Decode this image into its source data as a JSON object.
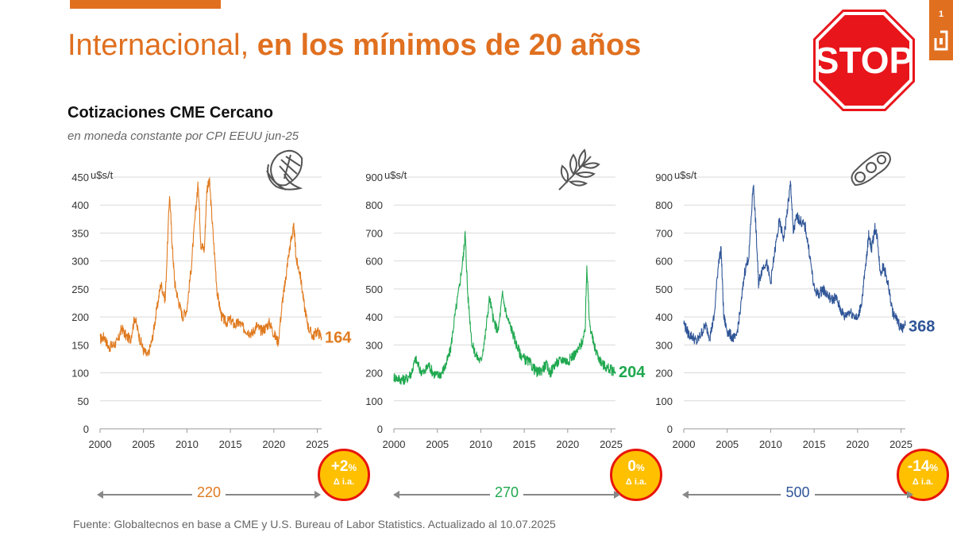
{
  "header": {
    "title_plain": "Internacional,",
    "title_bold": "en los mínimos de 20 años",
    "page_number": "1",
    "stop_sign_text": "STOP"
  },
  "subtitle": "Cotizaciones CME Cercano",
  "subsubtitle": "en moneda constante por CPI EEUU jun-25",
  "source": "Fuente: Globaltecnos en base a CME y U.S. Bureau of Labor Statistics. Actualizado al 10.07.2025",
  "colors": {
    "accent": "#e07020",
    "corn": "#e07a1f",
    "wheat": "#1fa84f",
    "soy": "#2f5597",
    "badge_fill": "#ffc000",
    "badge_ring": "#e8150c"
  },
  "chart_data": [
    {
      "type": "line",
      "name": "corn",
      "icon": "corn-icon",
      "ylabel": "u$s/t",
      "ylim": [
        0,
        450
      ],
      "yticks": [
        "0",
        "50",
        "100",
        "150",
        "200",
        "250",
        "300",
        "350",
        "400",
        "450"
      ],
      "xlim": [
        2000,
        2025.5
      ],
      "xticks": [
        "2000",
        "2005",
        "2010",
        "2015",
        "2020",
        "2025"
      ],
      "last_value": "164",
      "yoy_change": "+2",
      "yoy_unit": "%",
      "yoy_label": "Δ i.a.",
      "range_label": "220",
      "x": [
        2000,
        2000.5,
        2001,
        2001.5,
        2002,
        2002.5,
        2003,
        2003.5,
        2004,
        2004.5,
        2005,
        2005.5,
        2006,
        2006.5,
        2007,
        2007.5,
        2008,
        2008.3,
        2008.6,
        2009,
        2009.5,
        2010,
        2010.5,
        2011,
        2011.3,
        2011.6,
        2012,
        2012.3,
        2012.6,
        2013,
        2013.5,
        2014,
        2014.5,
        2015,
        2015.5,
        2016,
        2016.5,
        2017,
        2017.5,
        2018,
        2018.5,
        2019,
        2019.5,
        2020,
        2020.5,
        2021,
        2021.3,
        2021.6,
        2022,
        2022.3,
        2022.6,
        2023,
        2023.5,
        2024,
        2024.5,
        2025,
        2025.5
      ],
      "y": [
        160,
        165,
        145,
        150,
        155,
        180,
        165,
        160,
        200,
        165,
        140,
        130,
        160,
        210,
        260,
        230,
        420,
        330,
        260,
        230,
        200,
        215,
        290,
        390,
        440,
        330,
        320,
        430,
        440,
        350,
        240,
        200,
        190,
        195,
        185,
        190,
        180,
        175,
        170,
        185,
        175,
        180,
        190,
        170,
        155,
        230,
        260,
        300,
        340,
        360,
        300,
        280,
        220,
        180,
        165,
        175,
        164
      ]
    },
    {
      "type": "line",
      "name": "wheat",
      "icon": "wheat-icon",
      "ylabel": "u$s/t",
      "ylim": [
        0,
        900
      ],
      "yticks": [
        "0",
        "100",
        "200",
        "300",
        "400",
        "500",
        "600",
        "700",
        "800",
        "900"
      ],
      "xlim": [
        2000,
        2025.5
      ],
      "xticks": [
        "2000",
        "2005",
        "2010",
        "2015",
        "2020",
        "2025"
      ],
      "last_value": "204",
      "yoy_change": "0",
      "yoy_unit": "%",
      "yoy_label": "Δ i.a.",
      "range_label": "270",
      "x": [
        2000,
        2000.5,
        2001,
        2001.5,
        2002,
        2002.5,
        2003,
        2003.5,
        2004,
        2004.5,
        2005,
        2005.5,
        2006,
        2006.5,
        2007,
        2007.5,
        2008,
        2008.2,
        2008.5,
        2009,
        2009.5,
        2010,
        2010.5,
        2011,
        2011.5,
        2012,
        2012.5,
        2013,
        2013.5,
        2014,
        2014.5,
        2015,
        2015.5,
        2016,
        2016.5,
        2017,
        2017.5,
        2018,
        2018.5,
        2019,
        2019.5,
        2020,
        2020.5,
        2021,
        2021.5,
        2022,
        2022.2,
        2022.5,
        2023,
        2023.5,
        2024,
        2024.5,
        2025,
        2025.5
      ],
      "y": [
        185,
        180,
        175,
        180,
        200,
        250,
        210,
        200,
        230,
        200,
        190,
        200,
        230,
        280,
        400,
        500,
        620,
        700,
        480,
        300,
        260,
        240,
        330,
        470,
        380,
        350,
        480,
        400,
        360,
        310,
        270,
        250,
        240,
        220,
        200,
        210,
        230,
        200,
        230,
        240,
        250,
        240,
        260,
        270,
        300,
        340,
        590,
        380,
        300,
        260,
        230,
        220,
        210,
        204
      ]
    },
    {
      "type": "line",
      "name": "soy",
      "icon": "soybean-icon",
      "ylabel": "u$s/t",
      "ylim": [
        0,
        900
      ],
      "yticks": [
        "0",
        "100",
        "200",
        "300",
        "400",
        "500",
        "600",
        "700",
        "800",
        "900"
      ],
      "xlim": [
        2000,
        2025.5
      ],
      "xticks": [
        "2000",
        "2005",
        "2010",
        "2015",
        "2020",
        "2025"
      ],
      "last_value": "368",
      "yoy_change": "-14",
      "yoy_unit": "%",
      "yoy_label": "Δ i.a.",
      "range_label": "500",
      "x": [
        2000,
        2000.5,
        2001,
        2001.5,
        2002,
        2002.5,
        2003,
        2003.5,
        2004,
        2004.3,
        2004.6,
        2005,
        2005.5,
        2006,
        2006.5,
        2007,
        2007.5,
        2008,
        2008.3,
        2008.6,
        2009,
        2009.5,
        2010,
        2010.5,
        2011,
        2011.5,
        2012,
        2012.3,
        2012.6,
        2013,
        2013.5,
        2014,
        2014.5,
        2015,
        2015.5,
        2016,
        2016.5,
        2017,
        2017.5,
        2018,
        2018.5,
        2019,
        2019.5,
        2020,
        2020.5,
        2021,
        2021.3,
        2021.6,
        2022,
        2022.3,
        2022.6,
        2023,
        2023.5,
        2024,
        2024.5,
        2025,
        2025.5
      ],
      "y": [
        380,
        340,
        330,
        310,
        340,
        370,
        330,
        400,
        600,
        640,
        400,
        350,
        330,
        320,
        420,
        560,
        620,
        880,
        720,
        520,
        570,
        600,
        520,
        640,
        740,
        680,
        800,
        880,
        700,
        760,
        740,
        720,
        620,
        500,
        480,
        500,
        480,
        460,
        470,
        430,
        400,
        420,
        410,
        390,
        460,
        600,
        700,
        640,
        720,
        680,
        560,
        580,
        520,
        420,
        390,
        360,
        368
      ]
    }
  ]
}
